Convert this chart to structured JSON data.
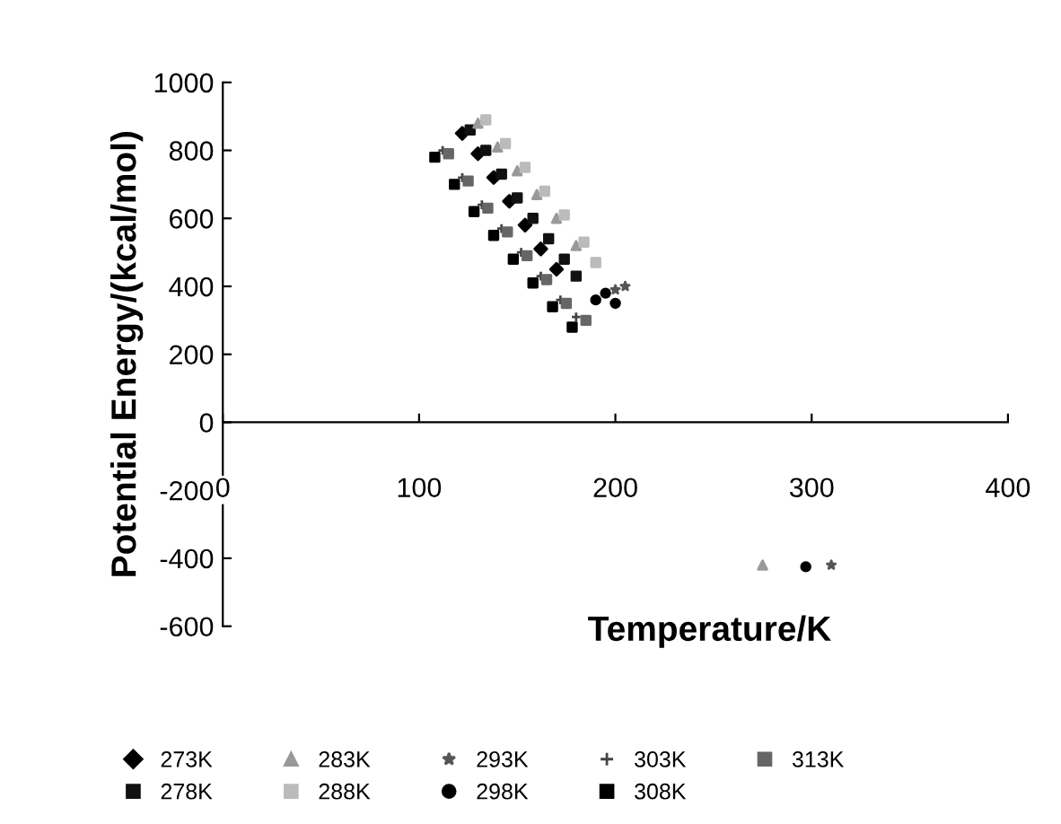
{
  "chart_data": {
    "type": "scatter",
    "xlabel": "Temperature/K",
    "ylabel": "Potential Energy/(kcal/mol)",
    "xlim": [
      0,
      400
    ],
    "xticks": [
      0,
      100,
      200,
      300,
      400
    ],
    "ylim": [
      -600,
      1000
    ],
    "yticks": [
      -600,
      -400,
      -200,
      0,
      200,
      400,
      600,
      800,
      1000
    ],
    "grid": false,
    "legend": "bottom",
    "series": [
      {
        "name": "273K",
        "color": "#000000",
        "marker": "diamond",
        "x": [
          122,
          130,
          138,
          146,
          154,
          162,
          170
        ],
        "values": [
          850,
          790,
          720,
          650,
          580,
          510,
          450
        ]
      },
      {
        "name": "278K",
        "color": "#111111",
        "marker": "square",
        "x": [
          126,
          134,
          142,
          150,
          158,
          166,
          174,
          180
        ],
        "values": [
          860,
          800,
          730,
          660,
          600,
          540,
          480,
          430
        ]
      },
      {
        "name": "283K",
        "color": "#999999",
        "marker": "triangle",
        "x": [
          130,
          140,
          150,
          160,
          170,
          180,
          275
        ],
        "values": [
          880,
          810,
          740,
          670,
          600,
          520,
          -420
        ]
      },
      {
        "name": "288K",
        "color": "#bbbbbb",
        "marker": "square",
        "x": [
          134,
          144,
          154,
          164,
          174,
          184,
          190
        ],
        "values": [
          890,
          820,
          750,
          680,
          610,
          530,
          470
        ]
      },
      {
        "name": "293K",
        "color": "#555555",
        "marker": "star",
        "x": [
          200,
          205,
          310
        ],
        "values": [
          390,
          400,
          -420
        ]
      },
      {
        "name": "298K",
        "color": "#000000",
        "marker": "circle",
        "x": [
          190,
          195,
          200,
          297
        ],
        "values": [
          360,
          380,
          350,
          -425
        ]
      },
      {
        "name": "303K",
        "color": "#444444",
        "marker": "cross",
        "x": [
          112,
          122,
          132,
          142,
          152,
          162,
          172,
          180
        ],
        "values": [
          800,
          720,
          640,
          570,
          500,
          430,
          360,
          310
        ]
      },
      {
        "name": "308K",
        "color": "#000000",
        "marker": "square",
        "x": [
          108,
          118,
          128,
          138,
          148,
          158,
          168,
          178
        ],
        "values": [
          780,
          700,
          620,
          550,
          480,
          410,
          340,
          280
        ]
      },
      {
        "name": "313K",
        "color": "#666666",
        "marker": "square",
        "x": [
          115,
          125,
          135,
          145,
          155,
          165,
          175,
          185
        ],
        "values": [
          790,
          710,
          630,
          560,
          490,
          420,
          350,
          300
        ]
      }
    ]
  }
}
